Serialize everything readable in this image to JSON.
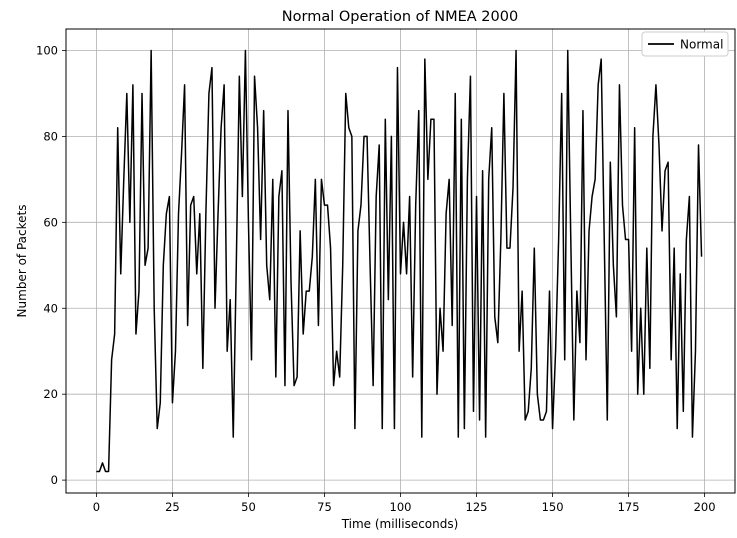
{
  "chart_data": {
    "type": "line",
    "title": "Normal Operation of NMEA 2000",
    "xlabel": "Time (milliseconds)",
    "ylabel": "Number of Packets",
    "xlim": [
      -10,
      210
    ],
    "ylim": [
      -3,
      105
    ],
    "x_ticks": [
      0,
      25,
      50,
      75,
      100,
      125,
      150,
      175,
      200
    ],
    "y_ticks": [
      0,
      20,
      40,
      60,
      80,
      100
    ],
    "grid": true,
    "legend_position": "top-right",
    "series": [
      {
        "name": "Normal",
        "color": "#000000",
        "x": [
          0,
          1,
          2,
          3,
          4,
          5,
          6,
          7,
          8,
          9,
          10,
          11,
          12,
          13,
          14,
          15,
          16,
          17,
          18,
          19,
          20,
          21,
          22,
          23,
          24,
          25,
          26,
          27,
          28,
          29,
          30,
          31,
          32,
          33,
          34,
          35,
          36,
          37,
          38,
          39,
          40,
          41,
          42,
          43,
          44,
          45,
          46,
          47,
          48,
          49,
          50,
          51,
          52,
          53,
          54,
          55,
          56,
          57,
          58,
          59,
          60,
          61,
          62,
          63,
          64,
          65,
          66,
          67,
          68,
          69,
          70,
          71,
          72,
          73,
          74,
          75,
          76,
          77,
          78,
          79,
          80,
          81,
          82,
          83,
          84,
          85,
          86,
          87,
          88,
          89,
          90,
          91,
          92,
          93,
          94,
          95,
          96,
          97,
          98,
          99,
          100,
          101,
          102,
          103,
          104,
          105,
          106,
          107,
          108,
          109,
          110,
          111,
          112,
          113,
          114,
          115,
          116,
          117,
          118,
          119,
          120,
          121,
          122,
          123,
          124,
          125,
          126,
          127,
          128,
          129,
          130,
          131,
          132,
          133,
          134,
          135,
          136,
          137,
          138,
          139,
          140,
          141,
          142,
          143,
          144,
          145,
          146,
          147,
          148,
          149,
          150,
          151,
          152,
          153,
          154,
          155,
          156,
          157,
          158,
          159,
          160,
          161,
          162,
          163,
          164,
          165,
          166,
          167,
          168,
          169,
          170,
          171,
          172,
          173,
          174,
          175,
          176,
          177,
          178,
          179,
          180,
          181,
          182,
          183,
          184,
          185,
          186,
          187,
          188,
          189,
          190,
          191,
          192,
          193,
          194,
          195,
          196,
          197,
          198,
          199
        ],
        "values": [
          2,
          2,
          4,
          2,
          2,
          28,
          34,
          82,
          48,
          70,
          90,
          60,
          92,
          34,
          44,
          90,
          50,
          54,
          100,
          40,
          12,
          18,
          50,
          62,
          66,
          18,
          30,
          62,
          76,
          92,
          36,
          64,
          66,
          48,
          62,
          26,
          62,
          90,
          96,
          40,
          62,
          82,
          92,
          30,
          42,
          10,
          50,
          94,
          66,
          100,
          60,
          28,
          94,
          82,
          56,
          86,
          50,
          42,
          70,
          24,
          66,
          72,
          22,
          86,
          46,
          22,
          24,
          58,
          34,
          44,
          44,
          52,
          70,
          36,
          70,
          64,
          64,
          54,
          22,
          30,
          24,
          50,
          90,
          82,
          80,
          12,
          58,
          64,
          80,
          80,
          50,
          22,
          66,
          78,
          12,
          84,
          42,
          80,
          12,
          96,
          48,
          60,
          48,
          66,
          24,
          64,
          86,
          10,
          98,
          70,
          84,
          84,
          20,
          40,
          30,
          62,
          70,
          36,
          90,
          10,
          84,
          12,
          70,
          94,
          16,
          66,
          14,
          72,
          10,
          70,
          82,
          38,
          32,
          56,
          90,
          54,
          54,
          68,
          100,
          30,
          44,
          14,
          16,
          26,
          54,
          20,
          14,
          14,
          16,
          44,
          12,
          30,
          56,
          90,
          28,
          100,
          56,
          14,
          44,
          32,
          86,
          28,
          58,
          66,
          70,
          92,
          98,
          56,
          14,
          74,
          50,
          38,
          92,
          64,
          56,
          56,
          30,
          82,
          20,
          40,
          20,
          54,
          26,
          80,
          92,
          78,
          58,
          72,
          74,
          28,
          54,
          12,
          48,
          16,
          56,
          66,
          10,
          30,
          78,
          52
        ]
      }
    ]
  }
}
